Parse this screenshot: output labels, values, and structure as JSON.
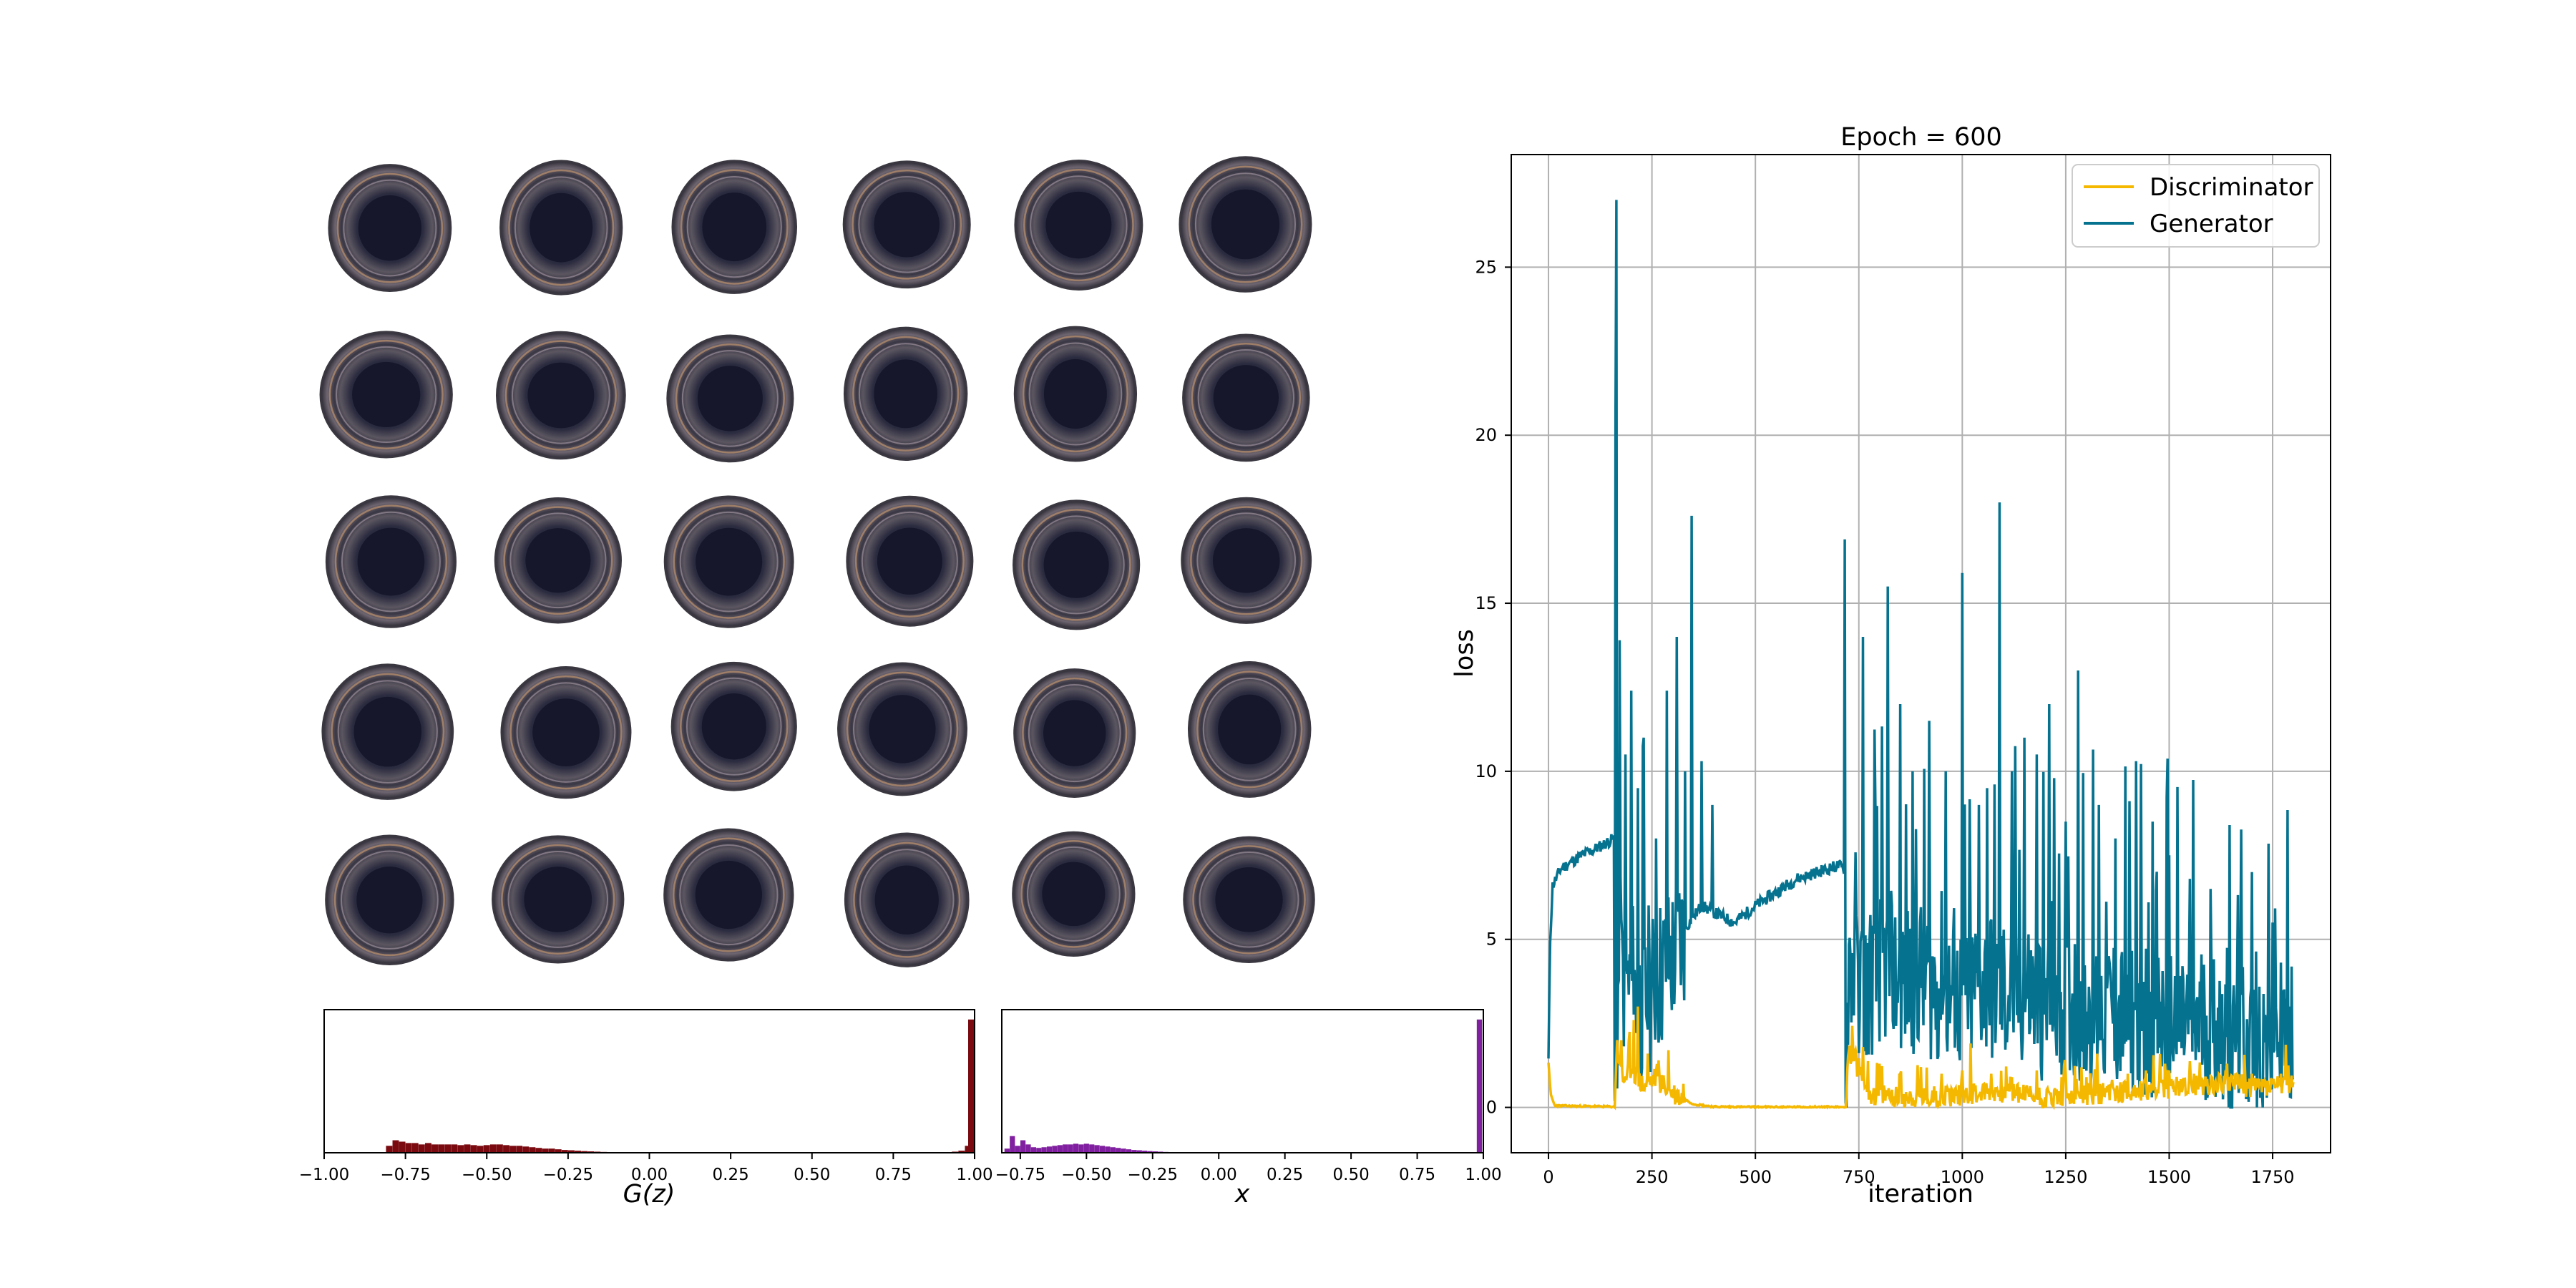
{
  "sample_grid": {
    "rows": 5,
    "cols": 6,
    "item_label": "generated-sample"
  },
  "chart_data": [
    {
      "id": "loss",
      "type": "line",
      "title": "Epoch = 600",
      "xlabel": "iteration",
      "ylabel": "loss",
      "xlim": [
        -90,
        1890
      ],
      "ylim": [
        -1.35,
        28.35
      ],
      "xticks": [
        0,
        250,
        500,
        750,
        1000,
        1250,
        1500,
        1750
      ],
      "yticks": [
        0,
        5,
        10,
        15,
        20,
        25
      ],
      "grid": true,
      "legend_position": "top-right",
      "series": [
        {
          "name": "Discriminator",
          "color": "#F5B800",
          "anchors": [
            [
              0,
              1.35
            ],
            [
              5,
              0.4
            ],
            [
              15,
              0.05
            ],
            [
              155,
              0.02
            ],
            [
              160,
              0.02
            ],
            [
              165,
              1.9
            ],
            [
              180,
              0.8
            ],
            [
              200,
              1.2
            ],
            [
              230,
              0.6
            ],
            [
              260,
              0.9
            ],
            [
              290,
              0.5
            ],
            [
              320,
              0.3
            ],
            [
              350,
              0.1
            ],
            [
              400,
              0.02
            ],
            [
              500,
              0.01
            ],
            [
              700,
              0.01
            ],
            [
              718,
              0.01
            ],
            [
              725,
              1.8
            ],
            [
              780,
              0.4
            ],
            [
              900,
              0.3
            ],
            [
              1000,
              0.4
            ],
            [
              1100,
              0.5
            ],
            [
              1200,
              0.3
            ],
            [
              1300,
              0.4
            ],
            [
              1400,
              0.5
            ],
            [
              1500,
              0.6
            ],
            [
              1600,
              0.7
            ],
            [
              1650,
              0.8
            ],
            [
              1700,
              0.6
            ],
            [
              1800,
              0.7
            ]
          ],
          "spikes": [
            [
              175,
              2.0
            ],
            [
              205,
              2.6
            ],
            [
              215,
              3.0
            ],
            [
              240,
              1.6
            ],
            [
              265,
              1.4
            ],
            [
              290,
              1.7
            ],
            [
              325,
              0.7
            ],
            [
              730,
              1.3
            ],
            [
              760,
              1.8
            ],
            [
              800,
              1.3
            ],
            [
              850,
              1.0
            ],
            [
              900,
              1.2
            ],
            [
              950,
              1.0
            ],
            [
              1000,
              1.1
            ],
            [
              1020,
              1.9
            ],
            [
              1070,
              1.0
            ],
            [
              1120,
              0.9
            ],
            [
              1180,
              1.1
            ],
            [
              1250,
              1.0
            ],
            [
              1300,
              0.9
            ],
            [
              1400,
              1.0
            ],
            [
              1500,
              1.1
            ],
            [
              1560,
              1.0
            ],
            [
              1640,
              1.3
            ],
            [
              1700,
              1.0
            ],
            [
              1770,
              1.0
            ]
          ]
        },
        {
          "name": "Generator",
          "color": "#05728F",
          "anchors": [
            [
              0,
              1.4
            ],
            [
              4,
              5.0
            ],
            [
              10,
              6.6
            ],
            [
              30,
              7.1
            ],
            [
              80,
              7.5
            ],
            [
              130,
              7.8
            ],
            [
              158,
              8.0
            ],
            [
              160,
              0.2
            ],
            [
              170,
              4.0
            ],
            [
              200,
              3.5
            ],
            [
              230,
              3.0
            ],
            [
              270,
              4.0
            ],
            [
              300,
              4.5
            ],
            [
              340,
              5.5
            ],
            [
              370,
              6.0
            ],
            [
              400,
              5.8
            ],
            [
              450,
              5.5
            ],
            [
              500,
              6.0
            ],
            [
              550,
              6.4
            ],
            [
              600,
              6.8
            ],
            [
              650,
              7.0
            ],
            [
              700,
              7.2
            ],
            [
              715,
              7.1
            ],
            [
              718,
              0.1
            ],
            [
              725,
              4.5
            ],
            [
              760,
              3.5
            ],
            [
              800,
              4.2
            ],
            [
              850,
              3.8
            ],
            [
              900,
              4.0
            ],
            [
              950,
              3.5
            ],
            [
              1000,
              3.2
            ],
            [
              1050,
              3.8
            ],
            [
              1100,
              3.4
            ],
            [
              1150,
              3.5
            ],
            [
              1200,
              3.1
            ],
            [
              1250,
              3.3
            ],
            [
              1300,
              3.0
            ],
            [
              1350,
              2.9
            ],
            [
              1400,
              2.8
            ],
            [
              1450,
              2.7
            ],
            [
              1500,
              2.6
            ],
            [
              1550,
              2.6
            ],
            [
              1600,
              2.5
            ],
            [
              1640,
              2.4
            ],
            [
              1650,
              0.2
            ],
            [
              1660,
              2.5
            ],
            [
              1700,
              2.0
            ],
            [
              1750,
              2.0
            ],
            [
              1800,
              2.2
            ]
          ],
          "spikes": [
            [
              162,
              20.5
            ],
            [
              164,
              27.0
            ],
            [
              172,
              13.9
            ],
            [
              185,
              10.5
            ],
            [
              200,
              12.4
            ],
            [
              215,
              9.5
            ],
            [
              230,
              11.0
            ],
            [
              260,
              8.0
            ],
            [
              285,
              12.4
            ],
            [
              310,
              14.0
            ],
            [
              330,
              10.0
            ],
            [
              345,
              17.6
            ],
            [
              370,
              10.3
            ],
            [
              395,
              9.0
            ],
            [
              715,
              16.9
            ],
            [
              760,
              14.0
            ],
            [
              790,
              9.0
            ],
            [
              820,
              15.5
            ],
            [
              850,
              12.0
            ],
            [
              880,
              10.0
            ],
            [
              920,
              11.5
            ],
            [
              960,
              10.0
            ],
            [
              1000,
              15.9
            ],
            [
              1040,
              9.0
            ],
            [
              1060,
              9.5
            ],
            [
              1090,
              18.0
            ],
            [
              1120,
              10.0
            ],
            [
              1150,
              11.0
            ],
            [
              1180,
              10.5
            ],
            [
              1210,
              12.0
            ],
            [
              1250,
              8.5
            ],
            [
              1280,
              13.0
            ],
            [
              1330,
              9.0
            ],
            [
              1370,
              8.0
            ],
            [
              1420,
              10.3
            ],
            [
              1460,
              8.5
            ],
            [
              1500,
              7.5
            ],
            [
              1550,
              6.8
            ],
            [
              1600,
              6.5
            ],
            [
              1645,
              8.4
            ],
            [
              1700,
              7.0
            ],
            [
              1750,
              5.5
            ],
            [
              1790,
              3.0
            ]
          ]
        }
      ]
    },
    {
      "id": "hist-gz",
      "type": "bar",
      "xlabel": "G(z)",
      "xlim": [
        -1.0,
        1.0
      ],
      "xticks": [
        "−1.00",
        "−0.75",
        "−0.50",
        "−0.25",
        "0.00",
        "0.25",
        "0.50",
        "0.75",
        "1.00"
      ],
      "color": "#7A0A10",
      "ymax": 1.0,
      "bins": [
        {
          "x": -0.8,
          "y": 0.05
        },
        {
          "x": -0.78,
          "y": 0.09
        },
        {
          "x": -0.76,
          "y": 0.08
        },
        {
          "x": -0.74,
          "y": 0.07
        },
        {
          "x": -0.72,
          "y": 0.07
        },
        {
          "x": -0.7,
          "y": 0.06
        },
        {
          "x": -0.68,
          "y": 0.07
        },
        {
          "x": -0.66,
          "y": 0.06
        },
        {
          "x": -0.64,
          "y": 0.06
        },
        {
          "x": -0.62,
          "y": 0.06
        },
        {
          "x": -0.6,
          "y": 0.06
        },
        {
          "x": -0.58,
          "y": 0.055
        },
        {
          "x": -0.56,
          "y": 0.06
        },
        {
          "x": -0.54,
          "y": 0.055
        },
        {
          "x": -0.52,
          "y": 0.05
        },
        {
          "x": -0.5,
          "y": 0.055
        },
        {
          "x": -0.48,
          "y": 0.06
        },
        {
          "x": -0.46,
          "y": 0.06
        },
        {
          "x": -0.44,
          "y": 0.055
        },
        {
          "x": -0.42,
          "y": 0.05
        },
        {
          "x": -0.4,
          "y": 0.05
        },
        {
          "x": -0.38,
          "y": 0.045
        },
        {
          "x": -0.36,
          "y": 0.04
        },
        {
          "x": -0.34,
          "y": 0.035
        },
        {
          "x": -0.32,
          "y": 0.03
        },
        {
          "x": -0.3,
          "y": 0.03
        },
        {
          "x": -0.28,
          "y": 0.025
        },
        {
          "x": -0.26,
          "y": 0.02
        },
        {
          "x": -0.24,
          "y": 0.018
        },
        {
          "x": -0.22,
          "y": 0.015
        },
        {
          "x": -0.2,
          "y": 0.012
        },
        {
          "x": -0.18,
          "y": 0.01
        },
        {
          "x": -0.16,
          "y": 0.008
        },
        {
          "x": -0.14,
          "y": 0.006
        },
        {
          "x": -0.12,
          "y": 0.005
        },
        {
          "x": -0.1,
          "y": 0.004
        },
        {
          "x": 0.9,
          "y": 0.004
        },
        {
          "x": 0.94,
          "y": 0.008
        },
        {
          "x": 0.96,
          "y": 0.015
        },
        {
          "x": 0.98,
          "y": 0.05
        },
        {
          "x": 0.99,
          "y": 0.96
        }
      ]
    },
    {
      "id": "hist-x",
      "type": "bar",
      "xlabel": "x",
      "xlim": [
        -0.82,
        1.0
      ],
      "xticks": [
        "−0.75",
        "−0.50",
        "−0.25",
        "0.00",
        "0.25",
        "0.50",
        "0.75",
        "1.00"
      ],
      "xtick_values": [
        -0.75,
        -0.5,
        -0.25,
        0,
        0.25,
        0.5,
        0.75,
        1.0
      ],
      "color": "#8020A0",
      "ymax": 1.0,
      "bins": [
        {
          "x": -0.8,
          "y": 0.03
        },
        {
          "x": -0.78,
          "y": 0.12
        },
        {
          "x": -0.76,
          "y": 0.05
        },
        {
          "x": -0.74,
          "y": 0.09
        },
        {
          "x": -0.72,
          "y": 0.06
        },
        {
          "x": -0.7,
          "y": 0.04
        },
        {
          "x": -0.68,
          "y": 0.035
        },
        {
          "x": -0.66,
          "y": 0.04
        },
        {
          "x": -0.64,
          "y": 0.045
        },
        {
          "x": -0.62,
          "y": 0.05
        },
        {
          "x": -0.6,
          "y": 0.055
        },
        {
          "x": -0.58,
          "y": 0.06
        },
        {
          "x": -0.56,
          "y": 0.06
        },
        {
          "x": -0.54,
          "y": 0.065
        },
        {
          "x": -0.52,
          "y": 0.06
        },
        {
          "x": -0.5,
          "y": 0.065
        },
        {
          "x": -0.48,
          "y": 0.06
        },
        {
          "x": -0.46,
          "y": 0.055
        },
        {
          "x": -0.44,
          "y": 0.05
        },
        {
          "x": -0.42,
          "y": 0.045
        },
        {
          "x": -0.4,
          "y": 0.04
        },
        {
          "x": -0.38,
          "y": 0.035
        },
        {
          "x": -0.36,
          "y": 0.03
        },
        {
          "x": -0.34,
          "y": 0.025
        },
        {
          "x": -0.32,
          "y": 0.02
        },
        {
          "x": -0.3,
          "y": 0.018
        },
        {
          "x": -0.28,
          "y": 0.015
        },
        {
          "x": -0.26,
          "y": 0.012
        },
        {
          "x": -0.24,
          "y": 0.01
        },
        {
          "x": -0.22,
          "y": 0.008
        },
        {
          "x": -0.2,
          "y": 0.006
        },
        {
          "x": -0.18,
          "y": 0.005
        },
        {
          "x": 0.985,
          "y": 0.96
        }
      ]
    }
  ]
}
